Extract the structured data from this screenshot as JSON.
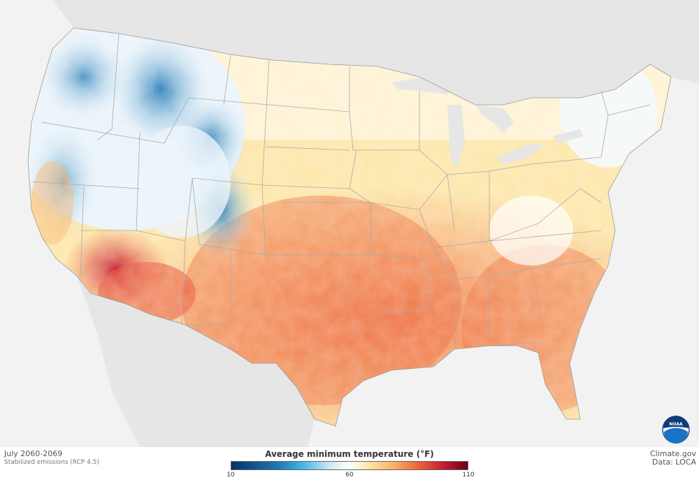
{
  "footer": {
    "period": "July 2060-2069",
    "scenario": "Stabilized emissions (RCP 4.5)",
    "credit_source": "Climate.gov",
    "credit_data": "Data: LOCA"
  },
  "legend": {
    "title": "Average minimum temperature  (°F)",
    "min_label": "10",
    "mid_label": "60",
    "max_label": "110"
  },
  "logo": {
    "text": "NOAA"
  },
  "colors": {
    "cold": "#1f78b4",
    "neutral": "#ffffff",
    "warm": "#f9b56a",
    "hot": "#c51b2f"
  }
}
